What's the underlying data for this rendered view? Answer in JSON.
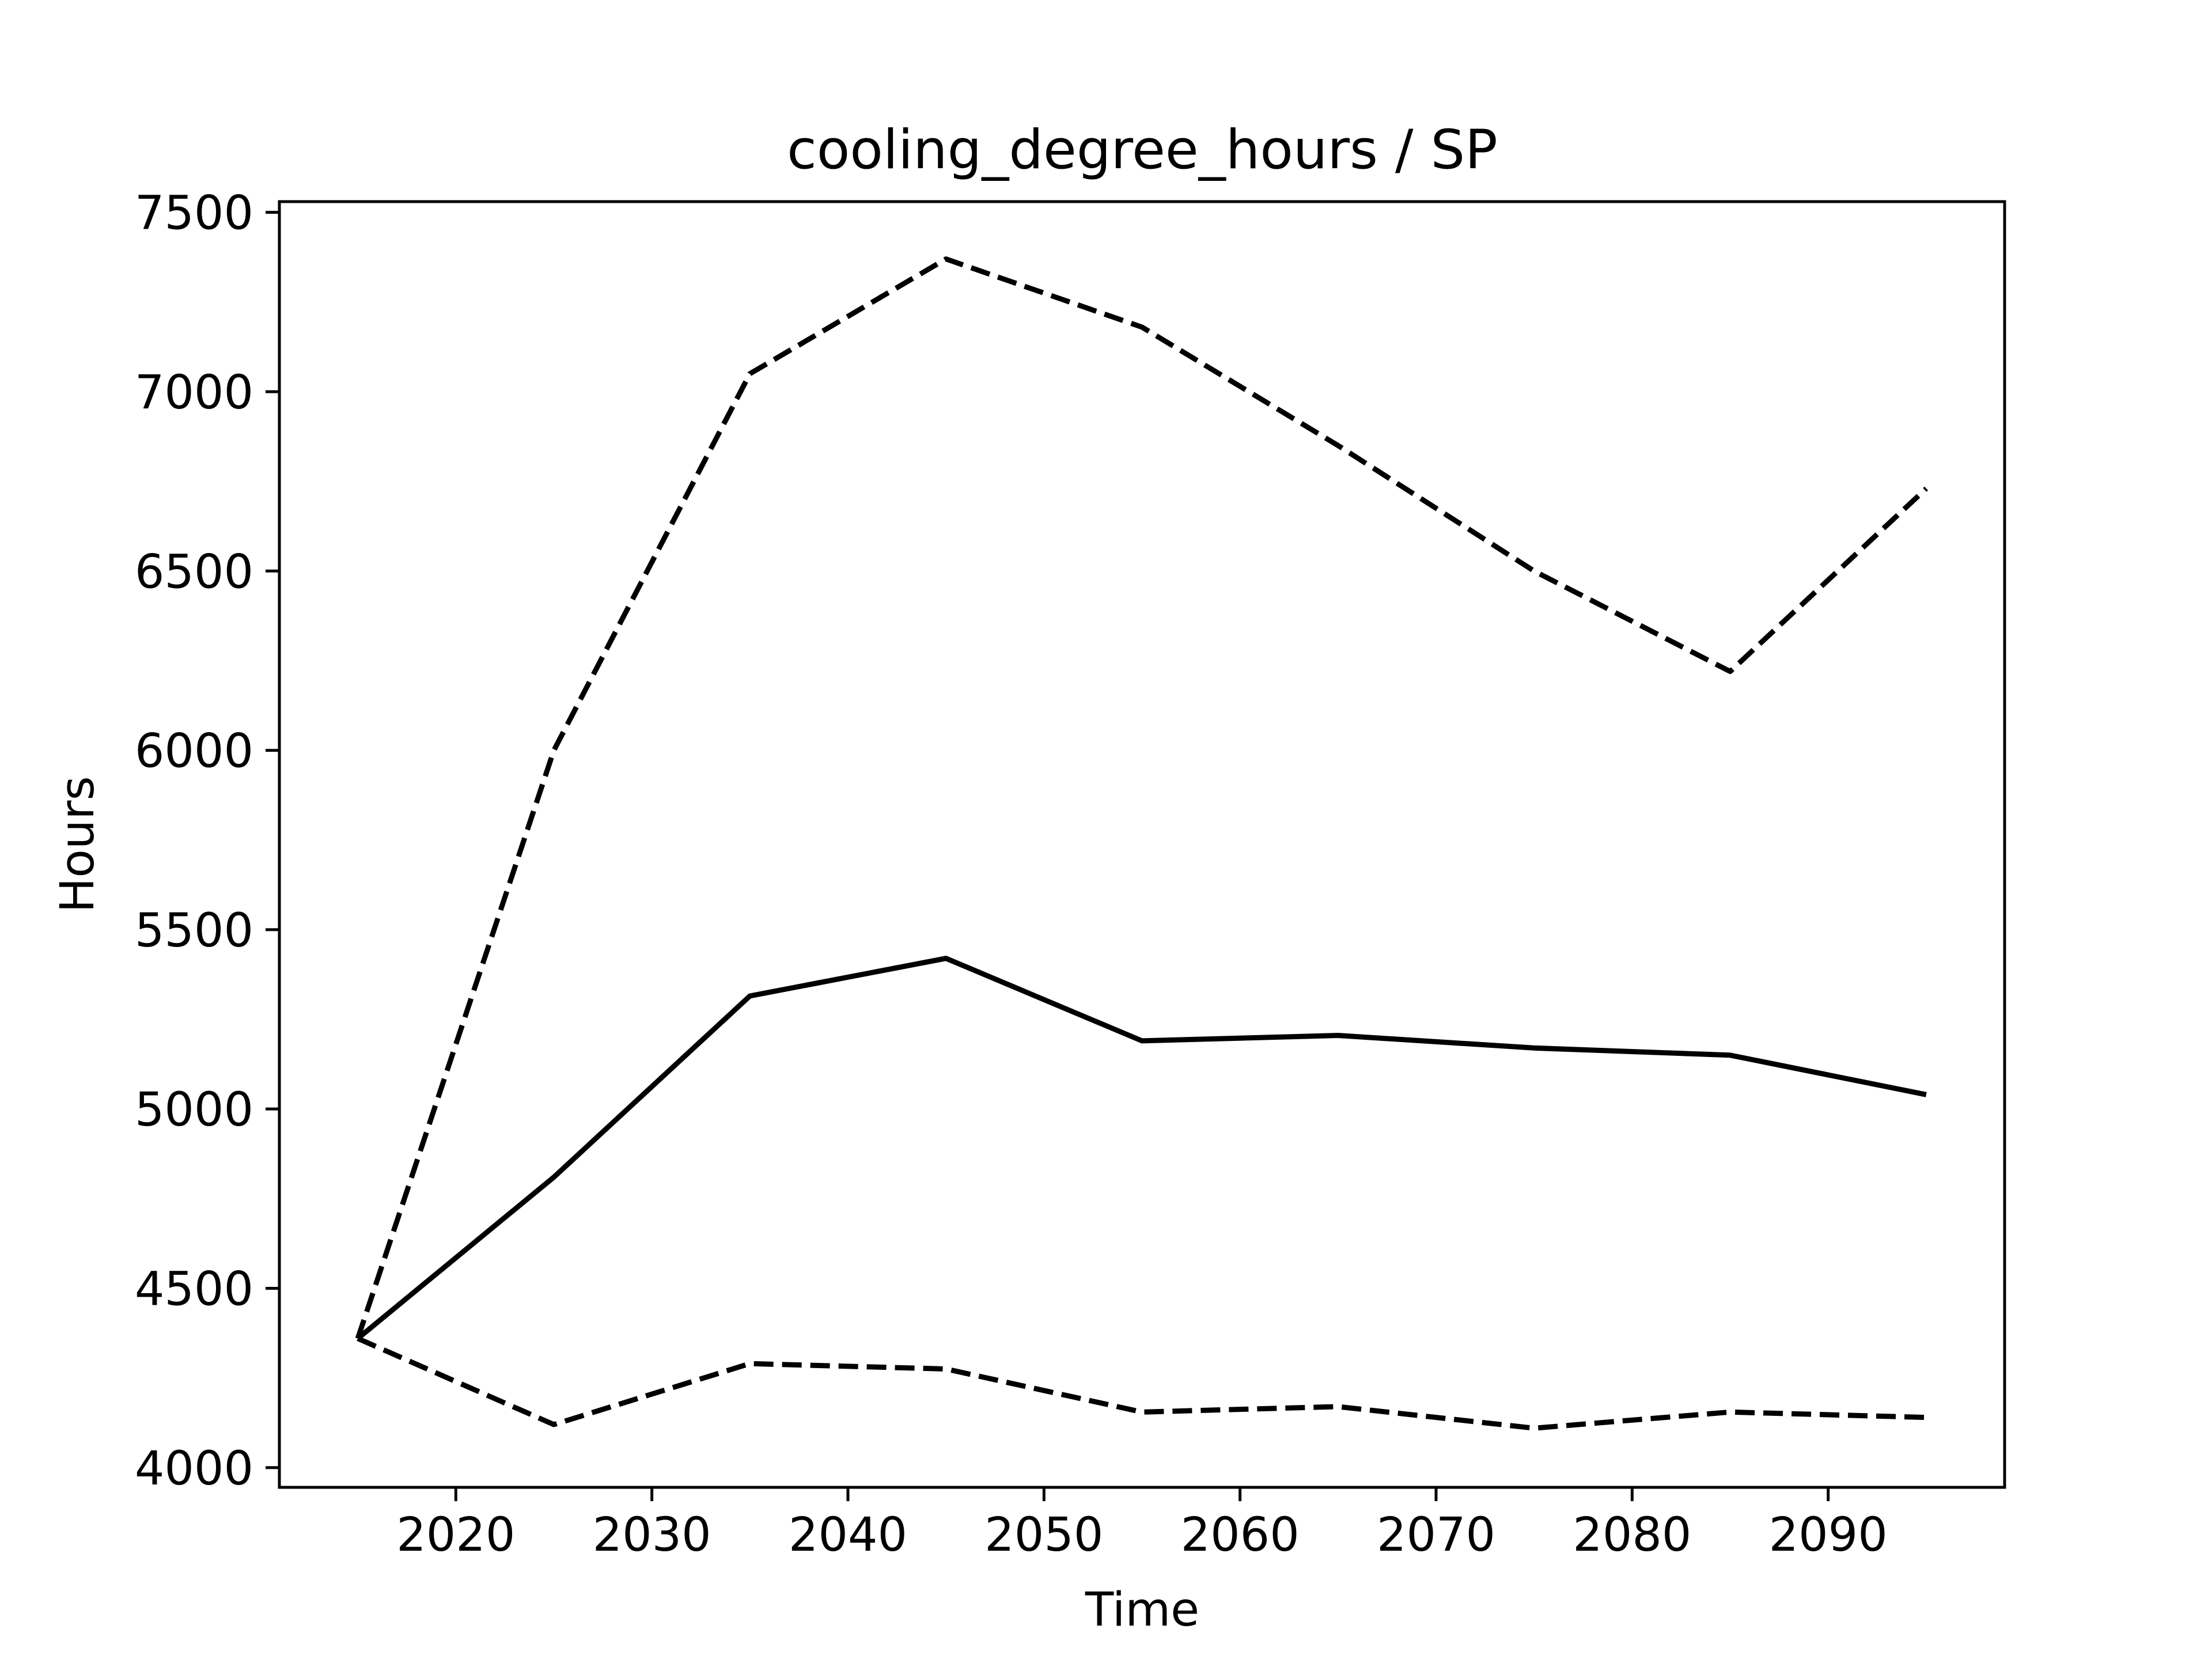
{
  "chart_data": {
    "type": "line",
    "title": "cooling_degree_hours / SP",
    "xlabel": "Time",
    "ylabel": "Hours",
    "xlim": [
      2011,
      2099
    ],
    "ylim": [
      3945,
      7530
    ],
    "xticks": [
      2020,
      2030,
      2040,
      2050,
      2060,
      2070,
      2080,
      2090
    ],
    "yticks": [
      4000,
      4500,
      5000,
      5500,
      6000,
      6500,
      7000,
      7500
    ],
    "grid": false,
    "line_color": "#000000",
    "x": [
      2015,
      2025,
      2035,
      2045,
      2055,
      2065,
      2075,
      2085,
      2095
    ],
    "series": [
      {
        "style": "dashed",
        "values": [
          4360,
          6000,
          7050,
          7370,
          7180,
          6850,
          6500,
          6220,
          6730
        ]
      },
      {
        "style": "solid",
        "values": [
          4360,
          4810,
          5315,
          5420,
          5190,
          5205,
          5170,
          5150,
          5040
        ]
      },
      {
        "style": "dashed",
        "values": [
          4360,
          4120,
          4290,
          4275,
          4155,
          4170,
          4110,
          4155,
          4140
        ]
      }
    ]
  }
}
